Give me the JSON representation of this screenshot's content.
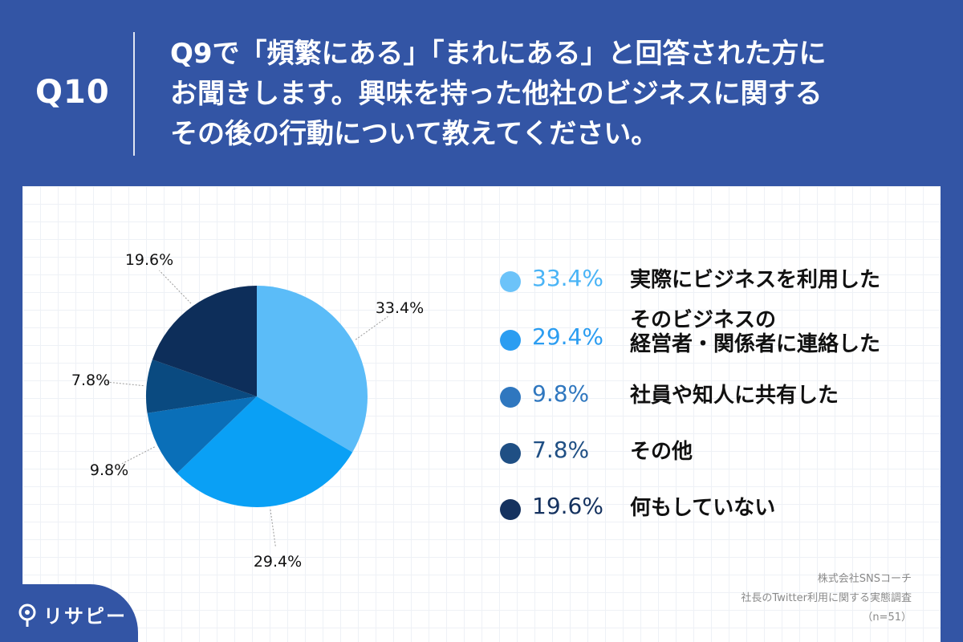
{
  "header": {
    "q_number": "Q10",
    "question_lines": [
      "Q9で「頻繁にある」「まれにある」と回答された方に",
      "お聞きします。興味を持った他社のビジネスに関する",
      "その後の行動について教えてください。"
    ]
  },
  "chart_data": {
    "type": "pie",
    "title": "",
    "start": "12 o'clock, clockwise",
    "slices": [
      {
        "label": "実際にビジネスを利用した",
        "value": 33.4,
        "display": "33.4%",
        "color": "#5bbcf8"
      },
      {
        "label": "そのビジネスの経営者・関係者に連絡した",
        "value": 29.4,
        "display": "29.4%",
        "color": "#0aa0f5"
      },
      {
        "label": "社員や知人に共有した",
        "value": 9.8,
        "display": "9.8%",
        "color": "#0a6fb8"
      },
      {
        "label": "その他",
        "value": 7.8,
        "display": "7.8%",
        "color": "#0a4a80"
      },
      {
        "label": "何もしていない",
        "value": 19.6,
        "display": "19.6%",
        "color": "#0d2e5a"
      }
    ]
  },
  "legend": [
    {
      "value": "33.4%",
      "lines": [
        "実際にビジネスを利用した"
      ],
      "dot_color": "#6cc3f9",
      "text_color": "#4ab4f6"
    },
    {
      "value": "29.4%",
      "lines": [
        "そのビジネスの",
        "経営者・関係者に連絡した"
      ],
      "dot_color": "#2b9df1",
      "text_color": "#2b9df1"
    },
    {
      "value": "9.8%",
      "lines": [
        "社員や知人に共有した"
      ],
      "dot_color": "#2f77bf",
      "text_color": "#2f77bf"
    },
    {
      "value": "7.8%",
      "lines": [
        "その他"
      ],
      "dot_color": "#1f4f84",
      "text_color": "#1f4f84"
    },
    {
      "value": "19.6%",
      "lines": [
        "何もしていない"
      ],
      "dot_color": "#15325f",
      "text_color": "#15325f"
    }
  ],
  "source": {
    "lines": [
      "株式会社SNSコーチ",
      "社長のTwitter利用に関する実態調査",
      "（n=51）"
    ]
  },
  "logo": {
    "text": "リサピー"
  }
}
